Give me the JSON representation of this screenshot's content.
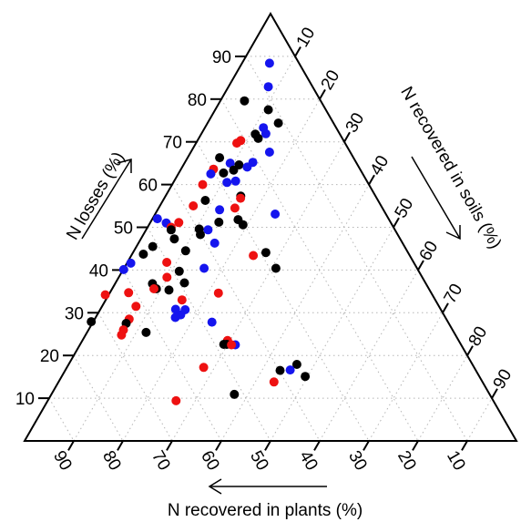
{
  "chart_data": {
    "type": "scatter",
    "subtype": "ternary",
    "title": "",
    "axes": {
      "losses": {
        "label": "N losses (%)",
        "ticks": [
          10,
          20,
          30,
          40,
          50,
          60,
          70,
          80,
          90
        ]
      },
      "soils": {
        "label": "N recovered in soils (%)",
        "ticks": [
          10,
          20,
          30,
          40,
          50,
          60,
          70,
          80,
          90
        ]
      },
      "plants": {
        "label": "N recovered in plants (%)",
        "ticks": [
          90,
          80,
          70,
          60,
          50,
          40,
          30,
          20,
          10
        ]
      }
    },
    "grid": true,
    "colors": {
      "black": "#000000",
      "red": "#ee1111",
      "blue": "#1515ee"
    },
    "points": [
      {
        "losses": 88.4,
        "soils": 5.6,
        "plants": 6.0,
        "color": "blue"
      },
      {
        "losses": 82.9,
        "soils": 8.1,
        "plants": 9.0,
        "color": "blue"
      },
      {
        "losses": 79.6,
        "soils": 4.9,
        "plants": 15.5,
        "color": "black"
      },
      {
        "losses": 77.5,
        "soils": 10.8,
        "plants": 11.7,
        "color": "black"
      },
      {
        "losses": 74.4,
        "soils": 14.4,
        "plants": 11.2,
        "color": "black"
      },
      {
        "losses": 73.3,
        "soils": 11.9,
        "plants": 14.8,
        "color": "blue"
      },
      {
        "losses": 71.9,
        "soils": 13.1,
        "plants": 15.0,
        "color": "blue"
      },
      {
        "losses": 71.8,
        "soils": 11.0,
        "plants": 17.2,
        "color": "black"
      },
      {
        "losses": 70.8,
        "soils": 12.1,
        "plants": 17.1,
        "color": "black"
      },
      {
        "losses": 70.3,
        "soils": 8.8,
        "plants": 20.9,
        "color": "red"
      },
      {
        "losses": 69.7,
        "soils": 8.3,
        "plants": 22.0,
        "color": "red"
      },
      {
        "losses": 67.6,
        "soils": 16.0,
        "plants": 16.4,
        "color": "blue"
      },
      {
        "losses": 66.3,
        "soils": 6.5,
        "plants": 27.2,
        "color": "black"
      },
      {
        "losses": 65.2,
        "soils": 13.8,
        "plants": 21.0,
        "color": "blue"
      },
      {
        "losses": 65.0,
        "soils": 9.3,
        "plants": 25.7,
        "color": "blue"
      },
      {
        "losses": 64.6,
        "soils": 11.3,
        "plants": 24.1,
        "color": "black"
      },
      {
        "losses": 64.1,
        "soils": 13.2,
        "plants": 22.7,
        "color": "blue"
      },
      {
        "losses": 63.6,
        "soils": 6.6,
        "plants": 29.8,
        "color": "red"
      },
      {
        "losses": 63.4,
        "soils": 10.8,
        "plants": 25.8,
        "color": "black"
      },
      {
        "losses": 62.7,
        "soils": 9.1,
        "plants": 28.2,
        "color": "black"
      },
      {
        "losses": 62.5,
        "soils": 6.6,
        "plants": 30.9,
        "color": "blue"
      },
      {
        "losses": 60.8,
        "soils": 12.5,
        "plants": 26.7,
        "color": "blue"
      },
      {
        "losses": 60.5,
        "soils": 10.9,
        "plants": 28.6,
        "color": "blue"
      },
      {
        "losses": 60.0,
        "soils": 6.2,
        "plants": 33.8,
        "color": "red"
      },
      {
        "losses": 57.3,
        "soils": 15.3,
        "plants": 27.4,
        "color": "black"
      },
      {
        "losses": 56.8,
        "soils": 15.5,
        "plants": 27.7,
        "color": "red"
      },
      {
        "losses": 56.3,
        "soils": 8.6,
        "plants": 35.1,
        "color": "black"
      },
      {
        "losses": 55.0,
        "soils": 6.8,
        "plants": 38.2,
        "color": "red"
      },
      {
        "losses": 54.5,
        "soils": 15.5,
        "plants": 30.0,
        "color": "red"
      },
      {
        "losses": 54.1,
        "soils": 12.6,
        "plants": 33.3,
        "color": "blue"
      },
      {
        "losses": 53.1,
        "soils": 24.4,
        "plants": 22.5,
        "color": "blue"
      },
      {
        "losses": 52.0,
        "soils": 1.0,
        "plants": 47.0,
        "color": "blue"
      },
      {
        "losses": 51.8,
        "soils": 17.5,
        "plants": 30.7,
        "color": "black"
      },
      {
        "losses": 51.2,
        "soils": 13.9,
        "plants": 34.9,
        "color": "black"
      },
      {
        "losses": 51.1,
        "soils": 5.8,
        "plants": 43.1,
        "color": "red"
      },
      {
        "losses": 51.0,
        "soils": 3.3,
        "plants": 45.7,
        "color": "blue"
      },
      {
        "losses": 50.6,
        "soils": 19.1,
        "plants": 30.3,
        "color": "black"
      },
      {
        "losses": 50.0,
        "soils": 4.8,
        "plants": 45.2,
        "color": "red"
      },
      {
        "losses": 49.6,
        "soils": 10.7,
        "plants": 39.7,
        "color": "black"
      },
      {
        "losses": 49.4,
        "soils": 12.6,
        "plants": 38.0,
        "color": "blue"
      },
      {
        "losses": 49.4,
        "soils": 5.1,
        "plants": 45.5,
        "color": "black"
      },
      {
        "losses": 48.3,
        "soils": 11.6,
        "plants": 40.1,
        "color": "black"
      },
      {
        "losses": 47.3,
        "soils": 6.8,
        "plants": 45.9,
        "color": "black"
      },
      {
        "losses": 46.3,
        "soils": 15.5,
        "plants": 38.2,
        "color": "blue"
      },
      {
        "losses": 45.5,
        "soils": 3.3,
        "plants": 51.2,
        "color": "black"
      },
      {
        "losses": 44.5,
        "soils": 10.5,
        "plants": 45.0,
        "color": "black"
      },
      {
        "losses": 44.1,
        "soils": 27.0,
        "plants": 28.9,
        "color": "black"
      },
      {
        "losses": 43.7,
        "soils": 2.3,
        "plants": 54.0,
        "color": "black"
      },
      {
        "losses": 43.4,
        "soils": 24.8,
        "plants": 31.8,
        "color": "red"
      },
      {
        "losses": 41.8,
        "soils": 8.0,
        "plants": 50.2,
        "color": "red"
      },
      {
        "losses": 41.6,
        "soils": 0.8,
        "plants": 57.6,
        "color": "blue"
      },
      {
        "losses": 40.4,
        "soils": 30.9,
        "plants": 28.7,
        "color": "black"
      },
      {
        "losses": 40.4,
        "soils": 16.3,
        "plants": 43.3,
        "color": "blue"
      },
      {
        "losses": 40.1,
        "soils": 0.1,
        "plants": 59.8,
        "color": "blue"
      },
      {
        "losses": 39.7,
        "soils": 11.6,
        "plants": 48.7,
        "color": "black"
      },
      {
        "losses": 38.3,
        "soils": 9.8,
        "plants": 51.9,
        "color": "red"
      },
      {
        "losses": 37.0,
        "soils": 14.0,
        "plants": 49.0,
        "color": "black"
      },
      {
        "losses": 36.8,
        "soils": 7.6,
        "plants": 55.6,
        "color": "black"
      },
      {
        "losses": 35.6,
        "soils": 9.0,
        "plants": 55.4,
        "color": "black"
      },
      {
        "losses": 35.6,
        "soils": 8.5,
        "plants": 55.9,
        "color": "red"
      },
      {
        "losses": 35.3,
        "soils": 11.7,
        "plants": 53.0,
        "color": "black"
      },
      {
        "losses": 34.7,
        "soils": 3.8,
        "plants": 61.5,
        "color": "red"
      },
      {
        "losses": 34.6,
        "soils": 22.1,
        "plants": 43.3,
        "color": "red"
      },
      {
        "losses": 34.2,
        "soils": -0.7,
        "plants": 66.5,
        "color": "red"
      },
      {
        "losses": 33.0,
        "soils": 15.5,
        "plants": 51.5,
        "color": "red"
      },
      {
        "losses": 31.5,
        "soils": 6.9,
        "plants": 61.6,
        "color": "red"
      },
      {
        "losses": 30.8,
        "soils": 15.3,
        "plants": 53.9,
        "color": "blue"
      },
      {
        "losses": 30.7,
        "soils": 17.3,
        "plants": 52.0,
        "color": "blue"
      },
      {
        "losses": 29.5,
        "soils": 17.0,
        "plants": 53.5,
        "color": "blue"
      },
      {
        "losses": 28.9,
        "soils": 16.2,
        "plants": 54.9,
        "color": "blue"
      },
      {
        "losses": 28.5,
        "soils": 7.0,
        "plants": 64.5,
        "color": "red"
      },
      {
        "losses": 27.9,
        "soils": -0.4,
        "plants": 72.5,
        "color": "black"
      },
      {
        "losses": 27.8,
        "soils": 24.2,
        "plants": 48.0,
        "color": "blue"
      },
      {
        "losses": 27.5,
        "soils": 6.9,
        "plants": 65.6,
        "color": "black"
      },
      {
        "losses": 26.0,
        "soils": 7.1,
        "plants": 66.9,
        "color": "red"
      },
      {
        "losses": 25.4,
        "soils": 12.0,
        "plants": 62.6,
        "color": "black"
      },
      {
        "losses": 24.8,
        "soils": 7.3,
        "plants": 67.9,
        "color": "red"
      },
      {
        "losses": 23.5,
        "soils": 29.5,
        "plants": 47.0,
        "color": "red"
      },
      {
        "losses": 22.6,
        "soils": 29.8,
        "plants": 47.6,
        "color": "black"
      },
      {
        "losses": 22.6,
        "soils": 29.2,
        "plants": 48.2,
        "color": "black"
      },
      {
        "losses": 22.5,
        "soils": 31.6,
        "plants": 45.9,
        "color": "blue"
      },
      {
        "losses": 22.5,
        "soils": 30.8,
        "plants": 46.7,
        "color": "red"
      },
      {
        "losses": 17.9,
        "soils": 46.4,
        "plants": 35.7,
        "color": "black"
      },
      {
        "losses": 17.2,
        "soils": 27.8,
        "plants": 55.0,
        "color": "red"
      },
      {
        "losses": 16.6,
        "soils": 45.7,
        "plants": 37.7,
        "color": "blue"
      },
      {
        "losses": 16.5,
        "soils": 43.7,
        "plants": 39.8,
        "color": "black"
      },
      {
        "losses": 15.1,
        "soils": 49.5,
        "plants": 35.4,
        "color": "black"
      },
      {
        "losses": 13.8,
        "soils": 43.8,
        "plants": 42.4,
        "color": "red"
      },
      {
        "losses": 10.9,
        "soils": 37.2,
        "plants": 51.9,
        "color": "black"
      },
      {
        "losses": 9.4,
        "soils": 26.1,
        "plants": 64.5,
        "color": "red"
      }
    ]
  }
}
